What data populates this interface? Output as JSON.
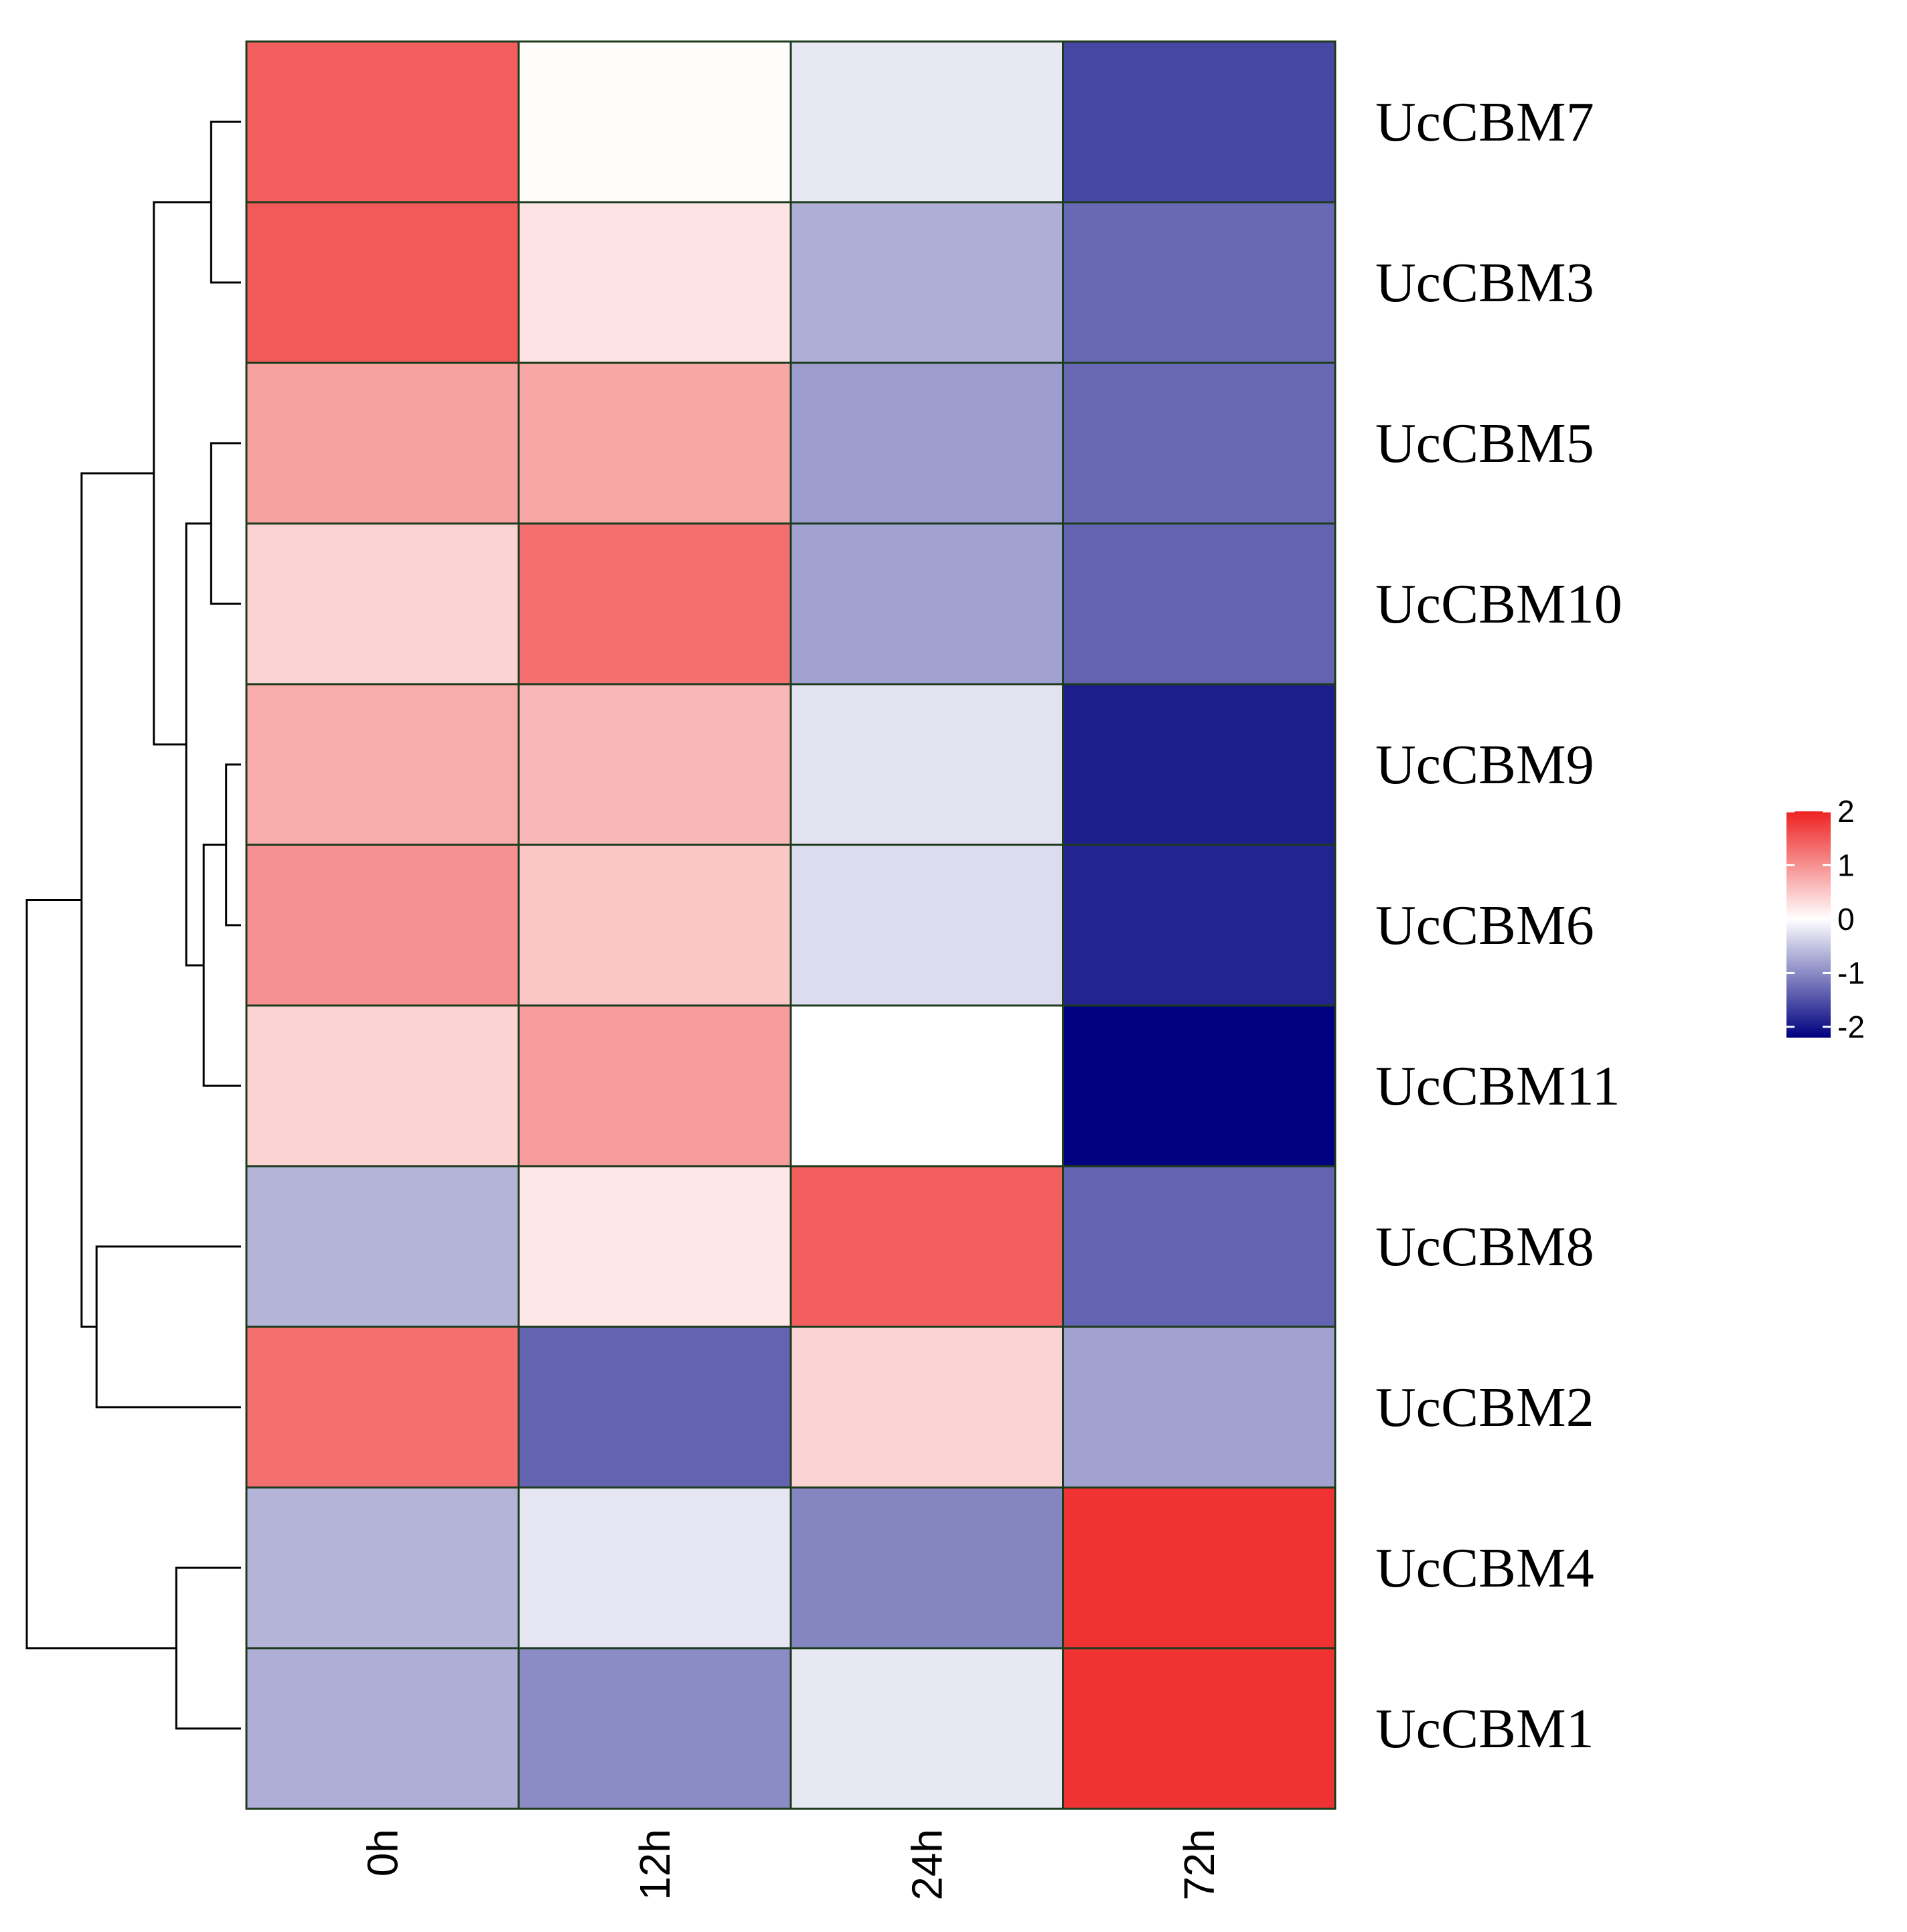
{
  "chart_data": {
    "type": "heatmap",
    "title": "",
    "columns": [
      "0h",
      "12h",
      "24h",
      "72h"
    ],
    "rows": [
      {
        "label": "UcCBM7",
        "values": [
          1.45,
          0.03,
          -0.2,
          -1.6
        ]
      },
      {
        "label": "UcCBM3",
        "values": [
          1.5,
          0.25,
          -0.7,
          -1.3
        ]
      },
      {
        "label": "UcCBM5",
        "values": [
          0.85,
          0.8,
          -0.85,
          -1.3
        ]
      },
      {
        "label": "UcCBM10",
        "values": [
          0.4,
          1.3,
          -0.8,
          -1.35
        ]
      },
      {
        "label": "UcCBM9",
        "values": [
          0.75,
          0.65,
          -0.25,
          -1.95
        ]
      },
      {
        "label": "UcCBM6",
        "values": [
          1.0,
          0.52,
          -0.3,
          -1.9
        ]
      },
      {
        "label": "UcCBM11",
        "values": [
          0.4,
          0.9,
          0.0,
          -2.2
        ]
      },
      {
        "label": "UcCBM8",
        "values": [
          -0.65,
          0.22,
          1.45,
          -1.35
        ]
      },
      {
        "label": "UcCBM2",
        "values": [
          1.3,
          -1.35,
          0.4,
          -0.8
        ]
      },
      {
        "label": "UcCBM4",
        "values": [
          -0.65,
          -0.22,
          -1.05,
          1.85
        ]
      },
      {
        "label": "UcCBM1",
        "values": [
          -0.7,
          -1.0,
          -0.2,
          1.85
        ]
      }
    ],
    "color_scale": {
      "min": -2.2,
      "max": 2.0,
      "low_color": "#000080",
      "mid_color": "#ffffff",
      "high_color": "#ee2222"
    },
    "legend": {
      "ticks": [
        "2",
        "1",
        "0",
        "-1",
        "-2"
      ],
      "tick_values": [
        2,
        1,
        0,
        -1,
        -2
      ],
      "placement": "right"
    },
    "dendrogram": {
      "placement": "left",
      "order": [
        "UcCBM7",
        "UcCBM3",
        "UcCBM5",
        "UcCBM10",
        "UcCBM9",
        "UcCBM6",
        "UcCBM11",
        "UcCBM8",
        "UcCBM2",
        "UcCBM4",
        "UcCBM1"
      ],
      "merges": [
        {
          "a": "UcCBM7",
          "b": "UcCBM3",
          "height": 0.6
        },
        {
          "a": "UcCBM5",
          "b": "UcCBM10",
          "height": 0.6
        },
        {
          "a": "UcCBM9",
          "b": "UcCBM6",
          "height": 0.3
        },
        {
          "a": "m3",
          "b": "UcCBM11",
          "height": 0.75
        },
        {
          "a": "m2",
          "b": "m4",
          "height": 1.1
        },
        {
          "a": "m1",
          "b": "m5",
          "height": 1.75
        },
        {
          "a": "UcCBM8",
          "b": "UcCBM2",
          "height": 2.9
        },
        {
          "a": "m6",
          "b": "m7",
          "height": 3.2
        },
        {
          "a": "UcCBM4",
          "b": "UcCBM1",
          "height": 1.3
        },
        {
          "a": "m8",
          "b": "m9",
          "height": 4.3
        }
      ]
    }
  }
}
